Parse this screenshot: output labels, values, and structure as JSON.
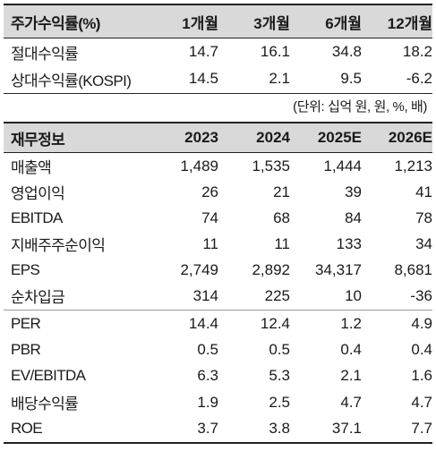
{
  "returns": {
    "header": [
      "주가수익률(%)",
      "1개월",
      "3개월",
      "6개월",
      "12개월"
    ],
    "rows": [
      {
        "label": "절대수익률",
        "values": [
          "14.7",
          "16.1",
          "34.8",
          "18.2"
        ]
      },
      {
        "label": "상대수익률(KOSPI)",
        "values": [
          "14.5",
          "2.1",
          "9.5",
          "-6.2"
        ]
      }
    ]
  },
  "unit_note": "(단위: 십억 원, 원, %, 배)",
  "financials": {
    "header": [
      "재무정보",
      "2023",
      "2024",
      "2025E",
      "2026E"
    ],
    "group1": [
      {
        "label": "매출액",
        "values": [
          "1,489",
          "1,535",
          "1,444",
          "1,213"
        ]
      },
      {
        "label": "영업이익",
        "values": [
          "26",
          "21",
          "39",
          "41"
        ]
      },
      {
        "label": "EBITDA",
        "values": [
          "74",
          "68",
          "84",
          "78"
        ]
      },
      {
        "label": "지배주주순이익",
        "values": [
          "11",
          "11",
          "133",
          "34"
        ]
      },
      {
        "label": "EPS",
        "values": [
          "2,749",
          "2,892",
          "34,317",
          "8,681"
        ]
      },
      {
        "label": "순차입금",
        "values": [
          "314",
          "225",
          "10",
          "-36"
        ]
      }
    ],
    "group2": [
      {
        "label": "PER",
        "values": [
          "14.4",
          "12.4",
          "1.2",
          "4.9"
        ]
      },
      {
        "label": "PBR",
        "values": [
          "0.5",
          "0.5",
          "0.4",
          "0.4"
        ]
      },
      {
        "label": "EV/EBITDA",
        "values": [
          "6.3",
          "5.3",
          "2.1",
          "1.6"
        ]
      },
      {
        "label": "배당수익률",
        "values": [
          "1.9",
          "2.5",
          "4.7",
          "4.7"
        ]
      },
      {
        "label": "ROE",
        "values": [
          "3.7",
          "3.8",
          "37.1",
          "7.7"
        ]
      }
    ]
  }
}
